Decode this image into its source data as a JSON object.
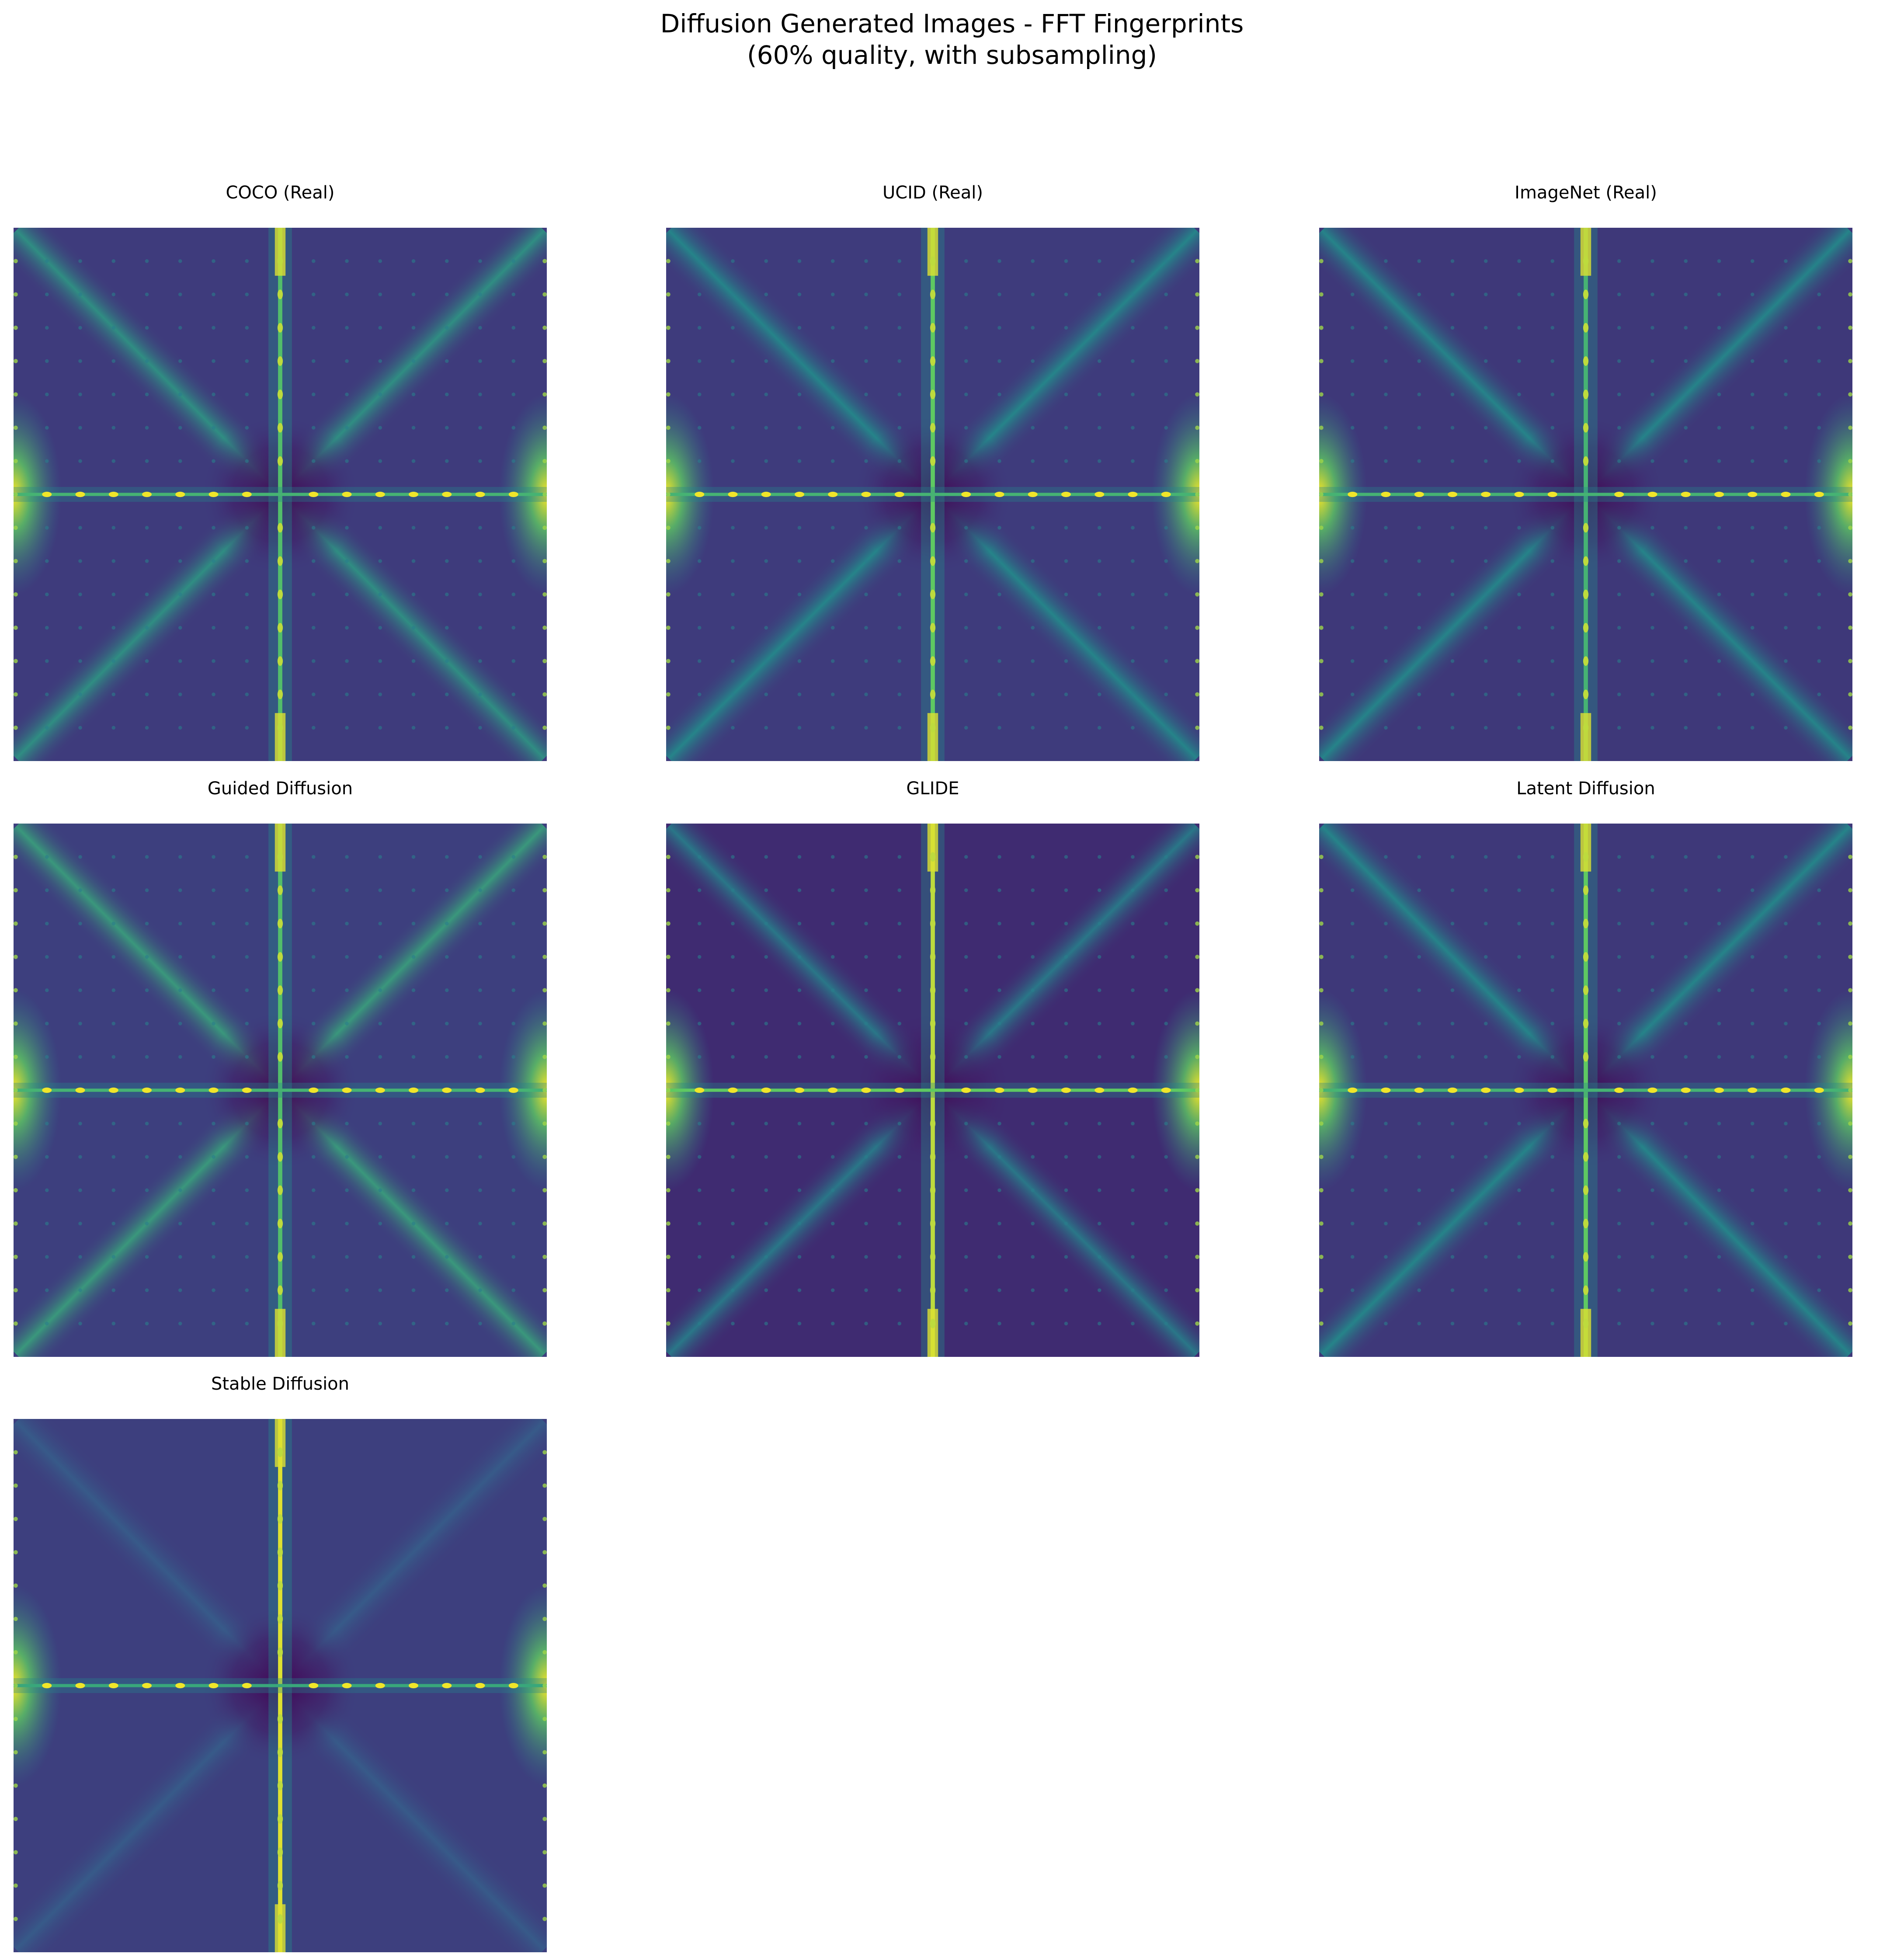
{
  "figure": {
    "title_line1": "Diffusion Generated Images - FFT Fingerprints",
    "title_line2": "(60% quality, with subsampling)"
  },
  "chart_data": {
    "type": "heatmap",
    "colormap": "viridis",
    "layout": {
      "rows": 3,
      "cols": 3
    },
    "panels": [
      {
        "title": "COCO (Real)",
        "grid": "on",
        "vline": 0.7,
        "hline": 0.65,
        "diag": 0.55,
        "bg": 0.18
      },
      {
        "title": "UCID (Real)",
        "grid": "on",
        "vline": 0.75,
        "hline": 0.65,
        "diag": 0.5,
        "bg": 0.18
      },
      {
        "title": "ImageNet (Real)",
        "grid": "on",
        "vline": 0.65,
        "hline": 0.65,
        "diag": 0.5,
        "bg": 0.17
      },
      {
        "title": "Guided Diffusion",
        "grid": "on",
        "vline": 0.7,
        "hline": 0.65,
        "diag": 0.6,
        "bg": 0.19
      },
      {
        "title": "GLIDE",
        "grid": "on",
        "vline": 0.9,
        "hline": 0.75,
        "diag": 0.45,
        "bg": 0.13
      },
      {
        "title": "Latent Diffusion",
        "grid": "on",
        "vline": 0.75,
        "hline": 0.65,
        "diag": 0.5,
        "bg": 0.17
      },
      {
        "title": "Stable Diffusion",
        "grid": "off",
        "vline": 0.95,
        "hline": 0.6,
        "diag": 0.3,
        "bg": 0.19
      }
    ]
  }
}
